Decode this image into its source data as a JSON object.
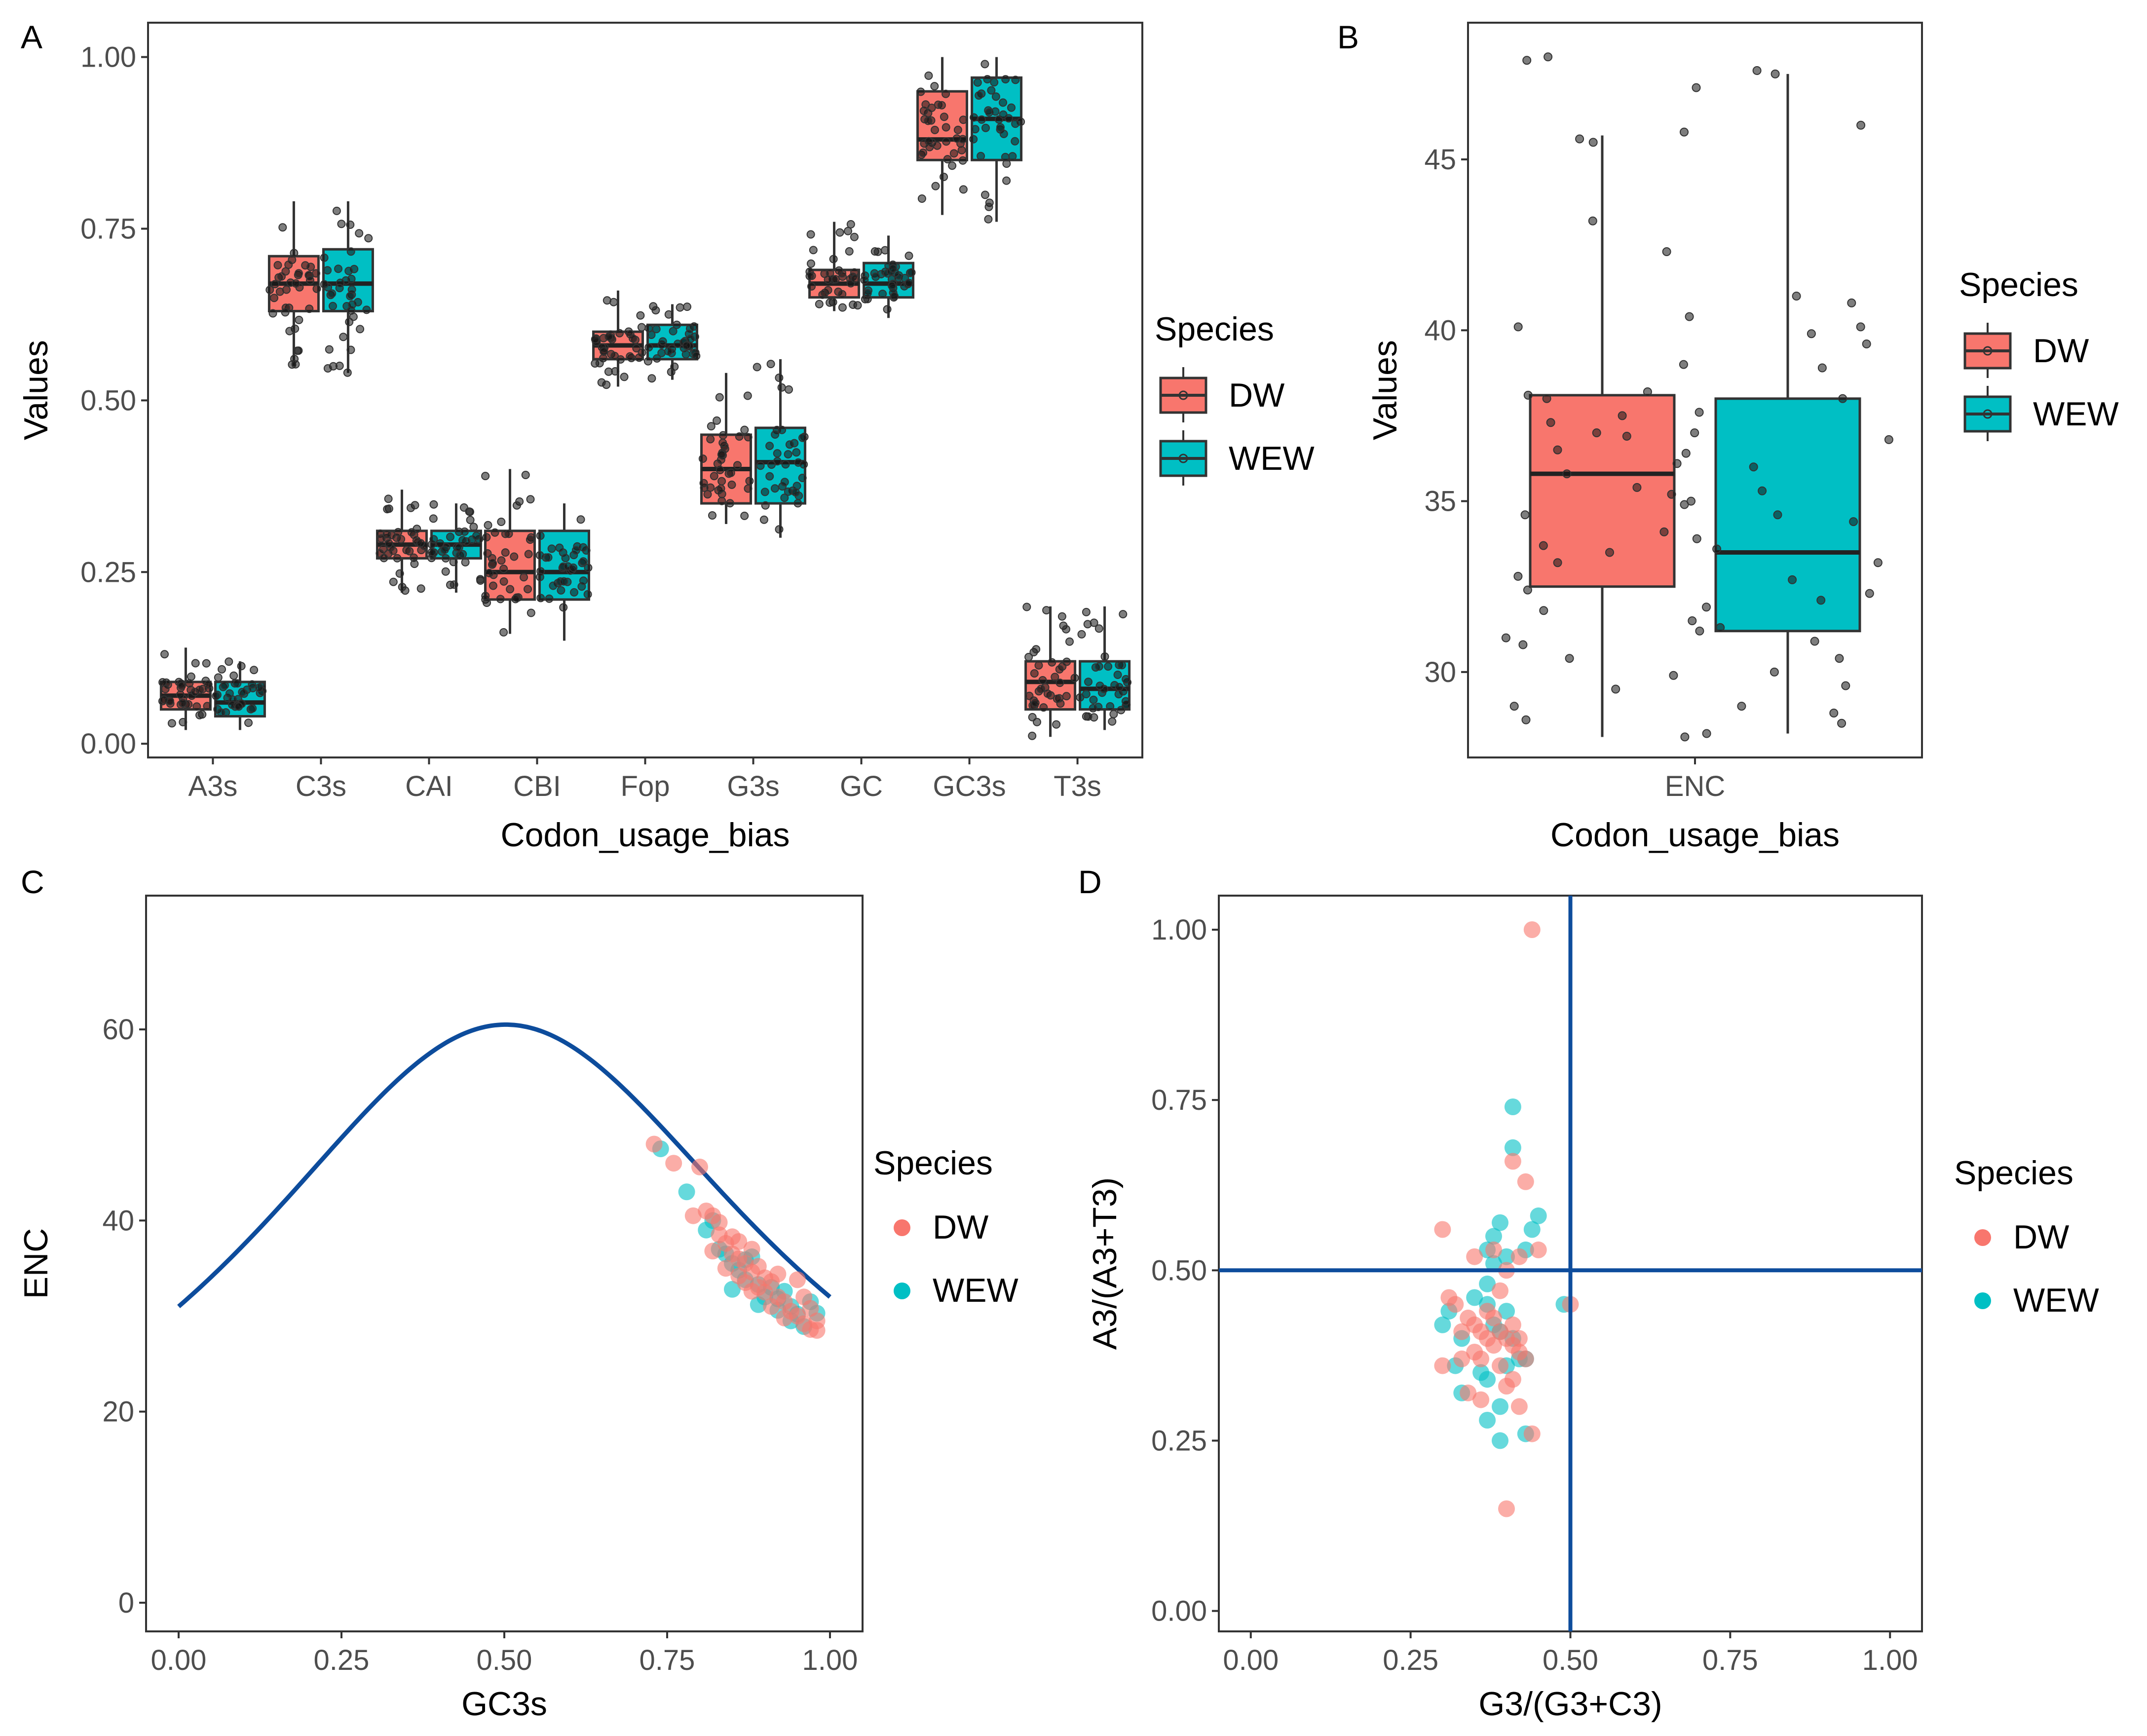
{
  "colors": {
    "dw": "#F8766D",
    "wew": "#00BFC4",
    "dw_box": "#F8766D",
    "wew_box": "#00BFC4",
    "curve": "#0D4C9C",
    "point": "#1a1a1a"
  },
  "chart_data": [
    {
      "panel": "A",
      "type": "box",
      "xlabel": "Codon_usage_bias",
      "ylabel": "Values",
      "ylim": [
        -0.02,
        1.05
      ],
      "yticks": [
        "0.00",
        "0.25",
        "0.50",
        "0.75",
        "1.00"
      ],
      "ytick_values": [
        0,
        0.25,
        0.5,
        0.75,
        1.0
      ],
      "categories": [
        "A3s",
        "C3s",
        "CAI",
        "CBI",
        "Fop",
        "G3s",
        "GC",
        "GC3s",
        "T3s"
      ],
      "legend": {
        "title": "Species",
        "entries": [
          "DW",
          "WEW"
        ]
      },
      "series": [
        {
          "name": "DW",
          "boxes": [
            [
              0.02,
              0.05,
              0.07,
              0.09,
              0.14
            ],
            [
              0.55,
              0.63,
              0.67,
              0.71,
              0.79
            ],
            [
              0.22,
              0.27,
              0.29,
              0.31,
              0.37
            ],
            [
              0.16,
              0.21,
              0.25,
              0.31,
              0.4
            ],
            [
              0.52,
              0.56,
              0.58,
              0.6,
              0.66
            ],
            [
              0.32,
              0.35,
              0.4,
              0.45,
              0.54
            ],
            [
              0.63,
              0.65,
              0.67,
              0.69,
              0.76
            ],
            [
              0.77,
              0.85,
              0.88,
              0.95,
              1.0
            ],
            [
              0.01,
              0.05,
              0.09,
              0.12,
              0.2
            ]
          ]
        },
        {
          "name": "WEW",
          "boxes": [
            [
              0.02,
              0.04,
              0.06,
              0.09,
              0.12
            ],
            [
              0.54,
              0.63,
              0.67,
              0.72,
              0.79
            ],
            [
              0.22,
              0.27,
              0.29,
              0.31,
              0.35
            ],
            [
              0.15,
              0.21,
              0.25,
              0.31,
              0.35
            ],
            [
              0.53,
              0.56,
              0.58,
              0.61,
              0.64
            ],
            [
              0.3,
              0.35,
              0.41,
              0.46,
              0.56
            ],
            [
              0.62,
              0.65,
              0.67,
              0.7,
              0.74
            ],
            [
              0.76,
              0.85,
              0.91,
              0.97,
              1.0
            ],
            [
              0.02,
              0.05,
              0.08,
              0.12,
              0.2
            ]
          ]
        }
      ]
    },
    {
      "panel": "B",
      "type": "box",
      "xlabel": "Codon_usage_bias",
      "ylabel": "Values",
      "ylim": [
        27.5,
        49.0
      ],
      "yticks": [
        "30",
        "35",
        "40",
        "45"
      ],
      "ytick_values": [
        30,
        35,
        40,
        45
      ],
      "categories": [
        "ENC"
      ],
      "legend": {
        "title": "Species",
        "entries": [
          "DW",
          "WEW"
        ]
      },
      "series": [
        {
          "name": "DW",
          "boxes": [
            [
              28.1,
              32.5,
              35.8,
              38.1,
              45.7
            ]
          ]
        },
        {
          "name": "WEW",
          "boxes": [
            [
              28.2,
              31.2,
              33.5,
              38.0,
              47.5
            ]
          ]
        }
      ],
      "points": {
        "DW": [
          48.0,
          47.9,
          45.8,
          45.5,
          45.6,
          43.2,
          42.3,
          40.4,
          40.1,
          38.2,
          38.1,
          38.0,
          37.5,
          37.0,
          36.5,
          36.1,
          35.8,
          35.4,
          35.0,
          34.6,
          34.1,
          33.7,
          33.2,
          32.8,
          32.4,
          31.8,
          31.2,
          30.8,
          30.4,
          29.9,
          29.5,
          29.0,
          28.6,
          28.1,
          35.2,
          37.3,
          33.5,
          31.0,
          36.9,
          39.0
        ],
        "WEW": [
          47.6,
          47.5,
          47.1,
          46.0,
          41.0,
          40.8,
          40.1,
          39.9,
          38.9,
          38.0,
          37.6,
          37.0,
          36.4,
          36.0,
          35.3,
          34.9,
          34.4,
          33.9,
          33.6,
          33.2,
          32.7,
          32.3,
          31.9,
          31.3,
          30.9,
          30.4,
          30.0,
          29.6,
          29.0,
          28.8,
          28.5,
          28.2,
          34.6,
          36.8,
          32.1,
          31.5,
          39.6
        ]
      }
    },
    {
      "panel": "C",
      "type": "scatter",
      "xlabel": "GC3s",
      "ylabel": "ENC",
      "xlim": [
        -0.05,
        1.05
      ],
      "ylim": [
        -3,
        74
      ],
      "xticks": [
        "0.00",
        "0.25",
        "0.50",
        "0.75",
        "1.00"
      ],
      "xtick_values": [
        0,
        0.25,
        0.5,
        0.75,
        1.0
      ],
      "yticks": [
        "0",
        "20",
        "40",
        "60"
      ],
      "ytick_values": [
        0,
        20,
        40,
        60
      ],
      "curve": "ENC = 2 + GC3s + 29 / (GC3s^2 + (1 - GC3s)^2)",
      "legend": {
        "title": "Species",
        "entries": [
          "DW",
          "WEW"
        ]
      },
      "series": [
        {
          "name": "DW",
          "points": [
            [
              0.73,
              48.0
            ],
            [
              0.76,
              46.0
            ],
            [
              0.8,
              45.6
            ],
            [
              0.81,
              41.0
            ],
            [
              0.82,
              40.5
            ],
            [
              0.83,
              39.8
            ],
            [
              0.83,
              38.5
            ],
            [
              0.84,
              37.6
            ],
            [
              0.85,
              38.3
            ],
            [
              0.85,
              36.5
            ],
            [
              0.86,
              37.8
            ],
            [
              0.86,
              36.0
            ],
            [
              0.87,
              35.5
            ],
            [
              0.87,
              33.5
            ],
            [
              0.88,
              34.6
            ],
            [
              0.88,
              37.0
            ],
            [
              0.89,
              35.2
            ],
            [
              0.89,
              33.0
            ],
            [
              0.9,
              34.0
            ],
            [
              0.9,
              32.5
            ],
            [
              0.91,
              33.6
            ],
            [
              0.92,
              32.0
            ],
            [
              0.93,
              31.5
            ],
            [
              0.94,
              30.5
            ],
            [
              0.95,
              30.0
            ],
            [
              0.95,
              33.8
            ],
            [
              0.96,
              29.2
            ],
            [
              0.97,
              30.8
            ],
            [
              0.97,
              28.6
            ],
            [
              0.98,
              28.5
            ],
            [
              0.82,
              36.8
            ],
            [
              0.84,
              35.0
            ],
            [
              0.86,
              34.2
            ],
            [
              0.91,
              31.0
            ],
            [
              0.93,
              29.8
            ],
            [
              0.79,
              40.5
            ],
            [
              0.88,
              32.6
            ],
            [
              0.92,
              34.4
            ],
            [
              0.96,
              32.0
            ],
            [
              0.98,
              29.5
            ]
          ]
        },
        {
          "name": "WEW",
          "points": [
            [
              0.74,
              47.5
            ],
            [
              0.78,
              43.0
            ],
            [
              0.82,
              40.0
            ],
            [
              0.83,
              37.0
            ],
            [
              0.84,
              36.5
            ],
            [
              0.85,
              35.5
            ],
            [
              0.86,
              34.8
            ],
            [
              0.87,
              33.8
            ],
            [
              0.88,
              36.2
            ],
            [
              0.89,
              33.3
            ],
            [
              0.9,
              32.0
            ],
            [
              0.91,
              33.0
            ],
            [
              0.92,
              31.8
            ],
            [
              0.93,
              32.6
            ],
            [
              0.94,
              31.0
            ],
            [
              0.95,
              30.2
            ],
            [
              0.96,
              28.9
            ],
            [
              0.97,
              31.5
            ],
            [
              0.98,
              30.3
            ],
            [
              0.85,
              32.8
            ],
            [
              0.89,
              31.2
            ],
            [
              0.94,
              29.5
            ],
            [
              0.81,
              39.0
            ],
            [
              0.87,
              35.9
            ],
            [
              0.92,
              30.6
            ]
          ]
        }
      ]
    },
    {
      "panel": "D",
      "type": "scatter",
      "xlabel": "G3/(G3+C3)",
      "ylabel": "A3/(A3+T3)",
      "xlim": [
        -0.05,
        1.05
      ],
      "ylim": [
        -0.03,
        1.05
      ],
      "xticks": [
        "0.00",
        "0.25",
        "0.50",
        "0.75",
        "1.00"
      ],
      "xtick_values": [
        0,
        0.25,
        0.5,
        0.75,
        1.0
      ],
      "yticks": [
        "0.00",
        "0.25",
        "0.50",
        "0.75",
        "1.00"
      ],
      "ytick_values": [
        0,
        0.25,
        0.5,
        0.75,
        1.0
      ],
      "reference_lines": {
        "x": 0.5,
        "y": 0.5
      },
      "legend": {
        "title": "Species",
        "entries": [
          "DW",
          "WEW"
        ]
      },
      "series": [
        {
          "name": "DW",
          "points": [
            [
              0.44,
              1.0
            ],
            [
              0.41,
              0.66
            ],
            [
              0.43,
              0.63
            ],
            [
              0.3,
              0.56
            ],
            [
              0.35,
              0.52
            ],
            [
              0.38,
              0.53
            ],
            [
              0.42,
              0.52
            ],
            [
              0.45,
              0.53
            ],
            [
              0.4,
              0.5
            ],
            [
              0.31,
              0.46
            ],
            [
              0.32,
              0.45
            ],
            [
              0.34,
              0.43
            ],
            [
              0.35,
              0.42
            ],
            [
              0.36,
              0.41
            ],
            [
              0.37,
              0.4
            ],
            [
              0.38,
              0.43
            ],
            [
              0.39,
              0.41
            ],
            [
              0.4,
              0.4
            ],
            [
              0.41,
              0.39
            ],
            [
              0.42,
              0.38
            ],
            [
              0.43,
              0.37
            ],
            [
              0.33,
              0.37
            ],
            [
              0.36,
              0.37
            ],
            [
              0.39,
              0.36
            ],
            [
              0.41,
              0.34
            ],
            [
              0.4,
              0.33
            ],
            [
              0.34,
              0.32
            ],
            [
              0.36,
              0.31
            ],
            [
              0.42,
              0.3
            ],
            [
              0.44,
              0.26
            ],
            [
              0.4,
              0.15
            ],
            [
              0.5,
              0.45
            ],
            [
              0.3,
              0.36
            ],
            [
              0.38,
              0.39
            ],
            [
              0.37,
              0.44
            ],
            [
              0.33,
              0.41
            ],
            [
              0.42,
              0.4
            ],
            [
              0.39,
              0.47
            ],
            [
              0.35,
              0.38
            ],
            [
              0.41,
              0.42
            ]
          ]
        },
        {
          "name": "WEW",
          "points": [
            [
              0.41,
              0.74
            ],
            [
              0.41,
              0.68
            ],
            [
              0.45,
              0.58
            ],
            [
              0.38,
              0.55
            ],
            [
              0.39,
              0.57
            ],
            [
              0.44,
              0.56
            ],
            [
              0.37,
              0.53
            ],
            [
              0.4,
              0.52
            ],
            [
              0.43,
              0.53
            ],
            [
              0.38,
              0.51
            ],
            [
              0.37,
              0.48
            ],
            [
              0.49,
              0.45
            ],
            [
              0.4,
              0.44
            ],
            [
              0.37,
              0.45
            ],
            [
              0.31,
              0.44
            ],
            [
              0.33,
              0.4
            ],
            [
              0.38,
              0.42
            ],
            [
              0.39,
              0.41
            ],
            [
              0.41,
              0.4
            ],
            [
              0.43,
              0.37
            ],
            [
              0.42,
              0.37
            ],
            [
              0.36,
              0.35
            ],
            [
              0.37,
              0.34
            ],
            [
              0.39,
              0.3
            ],
            [
              0.37,
              0.28
            ],
            [
              0.39,
              0.25
            ],
            [
              0.43,
              0.26
            ],
            [
              0.3,
              0.42
            ],
            [
              0.32,
              0.36
            ],
            [
              0.33,
              0.32
            ],
            [
              0.35,
              0.46
            ],
            [
              0.4,
              0.36
            ]
          ]
        }
      ]
    }
  ]
}
